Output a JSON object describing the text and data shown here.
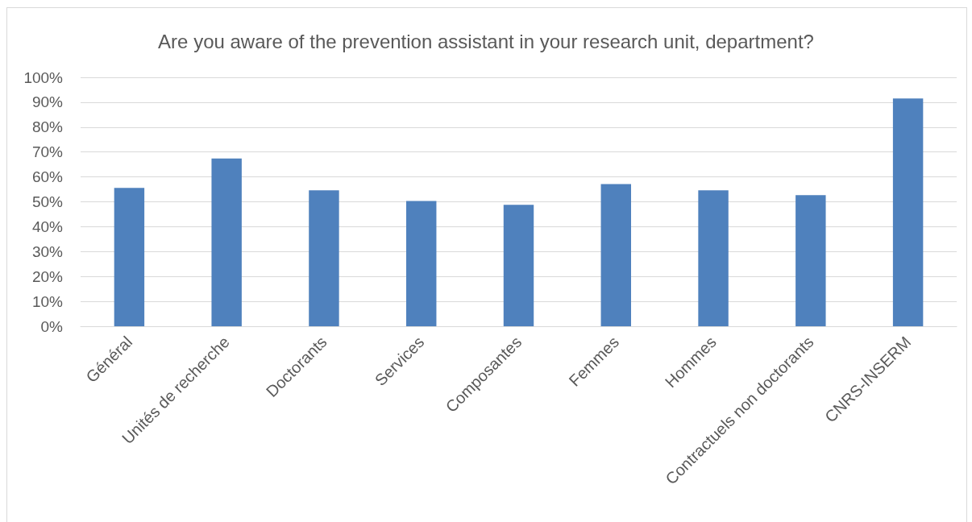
{
  "chart_data": {
    "type": "bar",
    "title": "Are you aware of the prevention assistant in your research unit, department?",
    "categories": [
      "Général",
      "Unités de recherche",
      "Doctorants",
      "Services",
      "Composantes",
      "Femmes",
      "Hommes",
      "Contractuels non doctorants",
      "CNRS-INSERM"
    ],
    "values": [
      55.6,
      67.4,
      54.6,
      50.3,
      48.8,
      57.1,
      54.6,
      52.7,
      91.5
    ],
    "color": "#4f81bd",
    "ylim": [
      0,
      100
    ],
    "yticks": [
      {
        "value": 0,
        "label": "0%"
      },
      {
        "value": 10,
        "label": "10%"
      },
      {
        "value": 20,
        "label": "20%"
      },
      {
        "value": 30,
        "label": "30%"
      },
      {
        "value": 40,
        "label": "40%"
      },
      {
        "value": 50,
        "label": "50%"
      },
      {
        "value": 60,
        "label": "60%"
      },
      {
        "value": 70,
        "label": "70%"
      },
      {
        "value": 80,
        "label": "80%"
      },
      {
        "value": 90,
        "label": "90%"
      },
      {
        "value": 100,
        "label": "100%"
      }
    ],
    "grid": "y"
  }
}
